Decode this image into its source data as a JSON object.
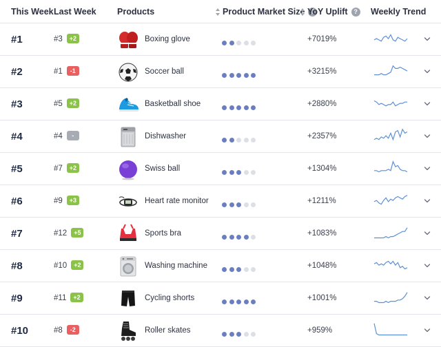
{
  "header": {
    "this_week": "This Week",
    "last_week": "Last Week",
    "products": "Products",
    "market_size": "Product Market Size",
    "yoy_uplift": "YoY Uplift",
    "weekly_trend": "Weekly Trend",
    "help_glyph": "?"
  },
  "colors": {
    "badge_up": "#8bc34a",
    "badge_down": "#e86060",
    "badge_same": "#a7abb3",
    "dot_on": "#6b7fc0",
    "dot_off": "#dcdfe5",
    "sparkline": "#5b8fd6"
  },
  "rows": [
    {
      "rank": "#1",
      "last_rank": "#3",
      "change": "+2",
      "change_type": "up",
      "product": "Boxing glove",
      "icon": "boxing-glove-icon",
      "market_size": 2,
      "uplift": "+7019%",
      "trend": [
        6,
        7,
        6,
        5,
        8,
        9,
        7,
        10,
        6,
        5,
        8,
        7,
        6,
        5,
        7
      ]
    },
    {
      "rank": "#2",
      "last_rank": "#1",
      "change": "-1",
      "change_type": "down",
      "product": "Soccer ball",
      "icon": "soccer-ball-icon",
      "market_size": 5,
      "uplift": "+3215%",
      "trend": [
        4,
        4,
        4,
        5,
        4,
        4,
        5,
        6,
        11,
        9,
        9,
        10,
        9,
        8,
        7
      ]
    },
    {
      "rank": "#3",
      "last_rank": "#5",
      "change": "+2",
      "change_type": "up",
      "product": "Basketball shoe",
      "icon": "basketball-shoe-icon",
      "market_size": 5,
      "uplift": "+2880%",
      "trend": [
        9,
        8,
        6,
        7,
        6,
        5,
        6,
        6,
        8,
        5,
        6,
        7,
        7,
        8,
        8
      ]
    },
    {
      "rank": "#4",
      "last_rank": "#4",
      "change": "-",
      "change_type": "same",
      "product": "Dishwasher",
      "icon": "dishwasher-icon",
      "market_size": 2,
      "uplift": "+2357%",
      "trend": [
        4,
        5,
        4,
        6,
        5,
        7,
        5,
        9,
        4,
        10,
        11,
        6,
        12,
        9,
        10
      ]
    },
    {
      "rank": "#5",
      "last_rank": "#7",
      "change": "+2",
      "change_type": "up",
      "product": "Swiss ball",
      "icon": "swiss-ball-icon",
      "market_size": 3,
      "uplift": "+1304%",
      "trend": [
        5,
        5,
        4,
        5,
        5,
        5,
        6,
        5,
        12,
        8,
        9,
        6,
        5,
        5,
        4
      ]
    },
    {
      "rank": "#6",
      "last_rank": "#9",
      "change": "+3",
      "change_type": "up",
      "product": "Heart rate monitor",
      "icon": "heart-rate-monitor-icon",
      "market_size": 3,
      "uplift": "+1211%",
      "trend": [
        6,
        7,
        5,
        4,
        7,
        9,
        6,
        8,
        7,
        9,
        10,
        9,
        8,
        10,
        11
      ]
    },
    {
      "rank": "#7",
      "last_rank": "#12",
      "change": "+5",
      "change_type": "up",
      "product": "Sports bra",
      "icon": "sports-bra-icon",
      "market_size": 4,
      "uplift": "+1083%",
      "trend": [
        3,
        3,
        3,
        3,
        3,
        4,
        3,
        4,
        4,
        5,
        6,
        7,
        8,
        8,
        11
      ]
    },
    {
      "rank": "#8",
      "last_rank": "#10",
      "change": "+2",
      "change_type": "up",
      "product": "Washing machine",
      "icon": "washing-machine-icon",
      "market_size": 3,
      "uplift": "+1048%",
      "trend": [
        8,
        9,
        7,
        8,
        7,
        9,
        10,
        8,
        10,
        7,
        9,
        5,
        6,
        4,
        5
      ]
    },
    {
      "rank": "#9",
      "last_rank": "#11",
      "change": "+2",
      "change_type": "up",
      "product": "Cycling shorts",
      "icon": "cycling-shorts-icon",
      "market_size": 5,
      "uplift": "+1001%",
      "trend": [
        4,
        4,
        3,
        3,
        3,
        4,
        3,
        4,
        4,
        4,
        5,
        5,
        6,
        8,
        11
      ]
    },
    {
      "rank": "#10",
      "last_rank": "#8",
      "change": "-2",
      "change_type": "down",
      "product": "Roller skates",
      "icon": "roller-skates-icon",
      "market_size": 3,
      "uplift": "+959%",
      "trend": [
        12,
        4,
        3,
        3,
        3,
        3,
        3,
        3,
        3,
        3,
        3,
        3,
        3,
        3,
        3
      ]
    }
  ]
}
